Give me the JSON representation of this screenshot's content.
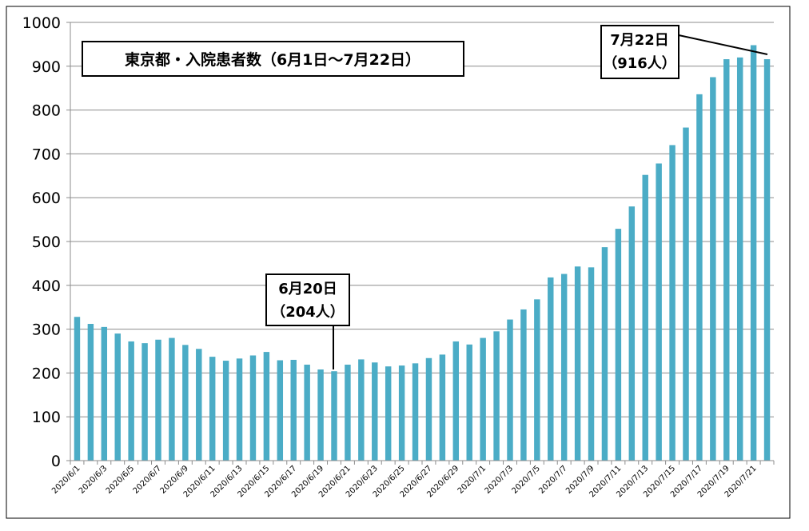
{
  "chart_data": {
    "type": "bar",
    "title": "東京都・入院患者数（6月1日～7月22日）",
    "xlabel": "",
    "ylabel": "",
    "ylim": [
      0,
      1000
    ],
    "yticks": [
      0,
      100,
      200,
      300,
      400,
      500,
      600,
      700,
      800,
      900,
      1000
    ],
    "grid": true,
    "bar_color": "#4BACC6",
    "categories": [
      "2020/6/1",
      "2020/6/2",
      "2020/6/3",
      "2020/6/4",
      "2020/6/5",
      "2020/6/6",
      "2020/6/7",
      "2020/6/8",
      "2020/6/9",
      "2020/6/10",
      "2020/6/11",
      "2020/6/12",
      "2020/6/13",
      "2020/6/14",
      "2020/6/15",
      "2020/6/16",
      "2020/6/17",
      "2020/6/18",
      "2020/6/19",
      "2020/6/20",
      "2020/6/21",
      "2020/6/22",
      "2020/6/23",
      "2020/6/24",
      "2020/6/25",
      "2020/6/26",
      "2020/6/27",
      "2020/6/28",
      "2020/6/29",
      "2020/6/30",
      "2020/7/1",
      "2020/7/2",
      "2020/7/3",
      "2020/7/4",
      "2020/7/5",
      "2020/7/6",
      "2020/7/7",
      "2020/7/8",
      "2020/7/9",
      "2020/7/10",
      "2020/7/11",
      "2020/7/12",
      "2020/7/13",
      "2020/7/14",
      "2020/7/15",
      "2020/7/16",
      "2020/7/17",
      "2020/7/18",
      "2020/7/19",
      "2020/7/20",
      "2020/7/21",
      "2020/7/22"
    ],
    "tick_labels": [
      "2020/6/1",
      "2020/6/3",
      "2020/6/5",
      "2020/6/7",
      "2020/6/9",
      "2020/6/11",
      "2020/6/13",
      "2020/6/15",
      "2020/6/17",
      "2020/6/19",
      "2020/6/21",
      "2020/6/23",
      "2020/6/25",
      "2020/6/27",
      "2020/6/29",
      "2020/7/1",
      "2020/7/3",
      "2020/7/5",
      "2020/7/7",
      "2020/7/9",
      "2020/7/11",
      "2020/7/13",
      "2020/7/15",
      "2020/7/17",
      "2020/7/19",
      "2020/7/21"
    ],
    "values": [
      328,
      312,
      305,
      290,
      272,
      268,
      276,
      280,
      264,
      255,
      237,
      228,
      233,
      240,
      248,
      229,
      230,
      219,
      208,
      204,
      219,
      231,
      224,
      215,
      217,
      222,
      234,
      242,
      272,
      265,
      280,
      295,
      322,
      345,
      368,
      418,
      426,
      443,
      441,
      487,
      529,
      580,
      652,
      678,
      720,
      760,
      836,
      875,
      916,
      920,
      948,
      916
    ],
    "annotations": [
      {
        "target": "2020/6/20",
        "line1": "6月20日",
        "line2": "（204人）"
      },
      {
        "target": "2020/7/22",
        "line1": "7月22日",
        "line2": "（916人）"
      }
    ]
  }
}
